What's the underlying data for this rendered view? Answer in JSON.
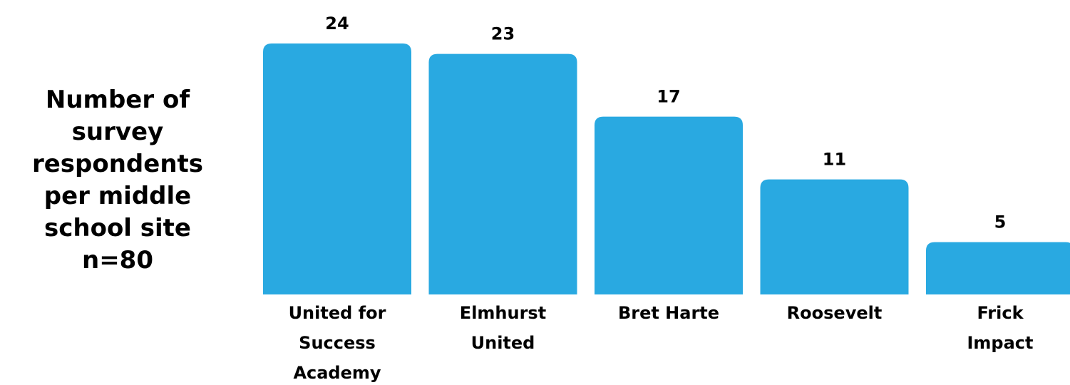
{
  "chart_data": {
    "type": "bar",
    "title_lines": [
      "Number of",
      "survey",
      "respondents",
      "per middle",
      "school site",
      "n=80"
    ],
    "categories": [
      [
        "United for",
        "Success",
        "Academy"
      ],
      [
        "Elmhurst",
        "United"
      ],
      [
        "Bret Harte"
      ],
      [
        "Roosevelt"
      ],
      [
        "Frick",
        "Impact"
      ]
    ],
    "values": [
      24,
      23,
      17,
      11,
      5
    ],
    "ylim": [
      0,
      24
    ],
    "grid": false,
    "legend": "none",
    "bar_color": "#29a9e1"
  }
}
